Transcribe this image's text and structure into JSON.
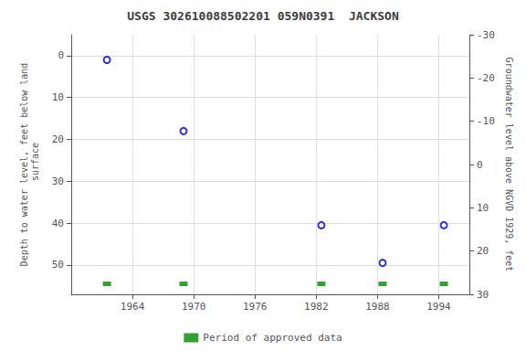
{
  "chart_data": {
    "type": "scatter",
    "title": "USGS 302610088502201 059N0391  JACKSON",
    "ylabel": "Depth to water level, feet below land\n surface",
    "y2label": "Groundwater level above NGVD 1929, feet",
    "x": [
      1961.5,
      1969,
      1982.5,
      1988.5,
      1994.5
    ],
    "series": [
      {
        "type": "scatter",
        "marker": "circle",
        "color": "#0000cc",
        "values": [
          1.0,
          18.0,
          40.5,
          49.5,
          40.5
        ]
      },
      {
        "name": "Period of approved data",
        "type": "scatter",
        "marker": "square",
        "color": "#008800",
        "values": [
          54.5,
          54.5,
          54.5,
          54.5,
          54.5
        ]
      }
    ],
    "xlim": [
      1958,
      1997
    ],
    "xticks": [
      1964,
      1970,
      1976,
      1982,
      1988,
      1994
    ],
    "ylim": [
      57,
      -5
    ],
    "yticks": [
      0,
      10,
      20,
      30,
      40,
      50
    ],
    "y2lim": [
      30,
      -30
    ],
    "y2ticks": [
      30,
      20,
      10,
      0,
      -10,
      -20,
      -30
    ],
    "grid": true,
    "legend": "bottom"
  }
}
